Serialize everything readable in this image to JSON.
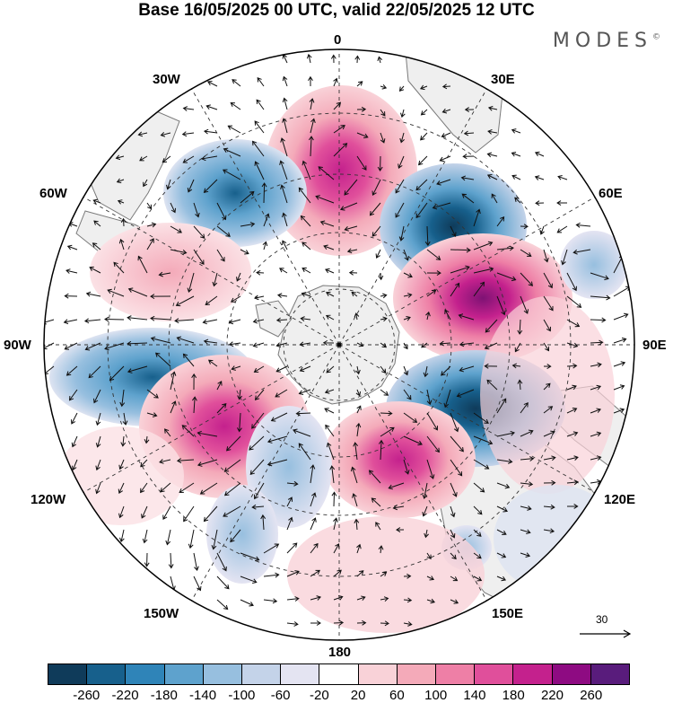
{
  "title": "Base 16/05/2025 00 UTC, valid 22/05/2025 12 UTC",
  "brand": "MODES",
  "brand_mark": "©",
  "map": {
    "projection": "south-polar-stereographic",
    "longitude_labels": {
      "top": "0",
      "bottom": "180",
      "left": "90W",
      "right": "90E",
      "upper_left_1": "30W",
      "upper_left_2": "60W",
      "upper_right_1": "30E",
      "upper_right_2": "60E",
      "lower_left_1": "120W",
      "lower_left_2": "150W",
      "lower_right_1": "120E",
      "lower_right_2": "150E"
    },
    "wind_reference_vector": "30",
    "land_color": "#efefef",
    "graticule": "dashed"
  },
  "colorbar": {
    "colors": [
      "#0f3b5a",
      "#17608c",
      "#2f84b8",
      "#5ea2cd",
      "#97bfdf",
      "#c4d3e9",
      "#e4e4f2",
      "#ffffff",
      "#f9d2d8",
      "#f4aab9",
      "#ee7fa6",
      "#e04f9b",
      "#c4218d",
      "#8e0b82",
      "#591c7c"
    ],
    "tick_labels": [
      "-260",
      "-220",
      "-180",
      "-140",
      "-100",
      "-60",
      "-20",
      "20",
      "60",
      "100",
      "140",
      "180",
      "220",
      "260"
    ]
  }
}
